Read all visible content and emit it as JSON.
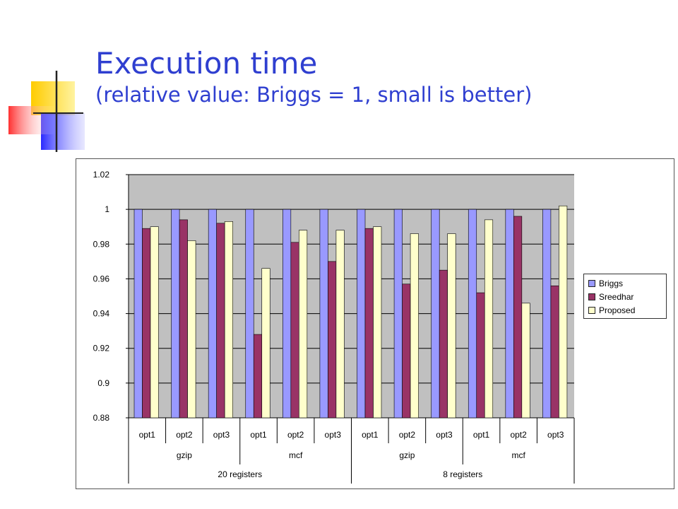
{
  "slide": {
    "title": "Execution time",
    "subtitle": "(relative value: Briggs = 1, small is better)"
  },
  "colors": {
    "title": "#2f3fd0",
    "plot_background": "#c0c0c0",
    "briggs": "#9999ff",
    "sreedhar": "#993366",
    "proposed": "#ffffcc"
  },
  "chart_data": {
    "type": "bar",
    "title": "",
    "xlabel": "",
    "ylabel": "",
    "ylim": [
      0.88,
      1.02
    ],
    "yticks": [
      "0.88",
      "0.9",
      "0.92",
      "0.94",
      "0.96",
      "0.98",
      "1",
      "1.02"
    ],
    "grid": true,
    "legend_position": "right",
    "categories": [
      "opt1",
      "opt2",
      "opt3",
      "opt1",
      "opt2",
      "opt3",
      "opt1",
      "opt2",
      "opt3",
      "opt1",
      "opt2",
      "opt3"
    ],
    "groups_level2": [
      {
        "label": "gzip",
        "span": 3
      },
      {
        "label": "mcf",
        "span": 3
      },
      {
        "label": "gzip",
        "span": 3
      },
      {
        "label": "mcf",
        "span": 3
      }
    ],
    "groups_level3": [
      {
        "label": "20 registers",
        "span": 6
      },
      {
        "label": "8 registers",
        "span": 6
      }
    ],
    "series": [
      {
        "name": "Briggs",
        "values": [
          1,
          1,
          1,
          1,
          1,
          1,
          1,
          1,
          1,
          1,
          1,
          1
        ]
      },
      {
        "name": "Sreedhar",
        "values": [
          0.989,
          0.994,
          0.992,
          0.928,
          0.981,
          0.97,
          0.989,
          0.957,
          0.965,
          0.952,
          0.996,
          0.956
        ]
      },
      {
        "name": "Proposed",
        "values": [
          0.99,
          0.982,
          0.993,
          0.966,
          0.988,
          0.988,
          0.99,
          0.986,
          0.986,
          0.994,
          0.946,
          1.002
        ]
      }
    ]
  }
}
